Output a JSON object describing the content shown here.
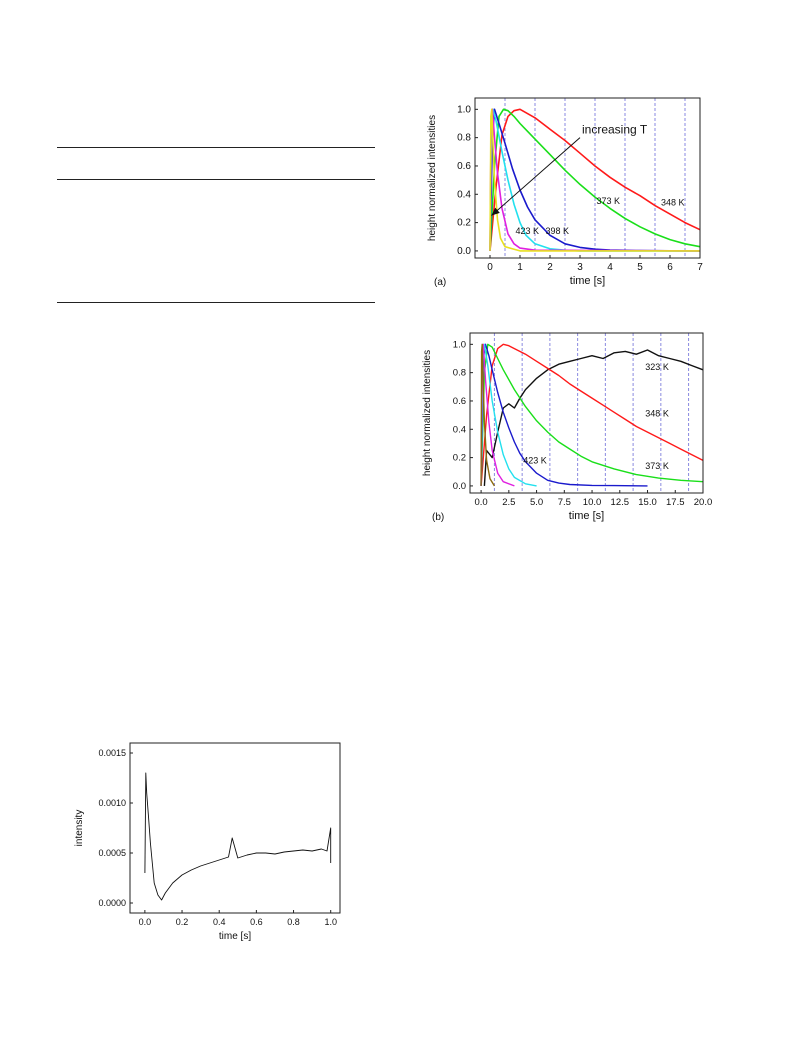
{
  "chart_data": [
    {
      "type": "line",
      "panel_label": "(a)",
      "xlabel": "time [s]",
      "ylabel": "height normalized intensities",
      "xlim": [
        -0.5,
        7
      ],
      "ylim": [
        -0.05,
        1.08
      ],
      "xticks": [
        "0",
        "1",
        "2",
        "3",
        "4",
        "5",
        "6",
        "7"
      ],
      "xtick_values": [
        0,
        1,
        2,
        3,
        4,
        5,
        6,
        7
      ],
      "yticks": [
        "0.0",
        "0.2",
        "0.4",
        "0.6",
        "0.8",
        "1.0"
      ],
      "ytick_values": [
        0,
        0.2,
        0.4,
        0.6,
        0.8,
        1.0
      ],
      "vlines": [
        0.5,
        1.5,
        2.5,
        3.5,
        4.5,
        5.5,
        6.5
      ],
      "vline_color": "#8a8ae0",
      "annotation": {
        "text": "increasing T",
        "arrow_from": [
          3.0,
          0.8
        ],
        "arrow_to": [
          0.05,
          0.25
        ]
      },
      "series": [
        {
          "name": "348 K",
          "color": "#ff1a1a",
          "x": [
            0,
            0.2,
            0.4,
            0.6,
            0.8,
            1.0,
            1.5,
            2.0,
            2.5,
            3.0,
            3.5,
            4.0,
            4.5,
            5.0,
            5.5,
            6.0,
            6.5,
            7.0
          ],
          "y": [
            0,
            0.45,
            0.82,
            0.95,
            0.99,
            1.0,
            0.94,
            0.86,
            0.78,
            0.69,
            0.6,
            0.52,
            0.45,
            0.39,
            0.32,
            0.26,
            0.2,
            0.15
          ]
        },
        {
          "name": "373 K",
          "color": "#1adf1a",
          "x": [
            0,
            0.15,
            0.3,
            0.45,
            0.6,
            0.8,
            1.0,
            1.5,
            2.0,
            2.5,
            3.0,
            3.5,
            4.0,
            4.5,
            5.0,
            5.5,
            6.0,
            6.5,
            7.0
          ],
          "y": [
            0,
            0.6,
            0.95,
            1.0,
            0.99,
            0.95,
            0.9,
            0.79,
            0.68,
            0.57,
            0.47,
            0.38,
            0.3,
            0.23,
            0.17,
            0.12,
            0.08,
            0.05,
            0.03
          ]
        },
        {
          "name": "398 K",
          "color": "#1a1acc",
          "x": [
            0,
            0.08,
            0.15,
            0.3,
            0.5,
            0.75,
            1.0,
            1.25,
            1.5,
            2.0,
            2.5,
            3.0,
            3.5,
            4.0,
            5.0,
            6.0,
            7.0
          ],
          "y": [
            0,
            0.8,
            1.0,
            0.9,
            0.76,
            0.58,
            0.43,
            0.31,
            0.22,
            0.11,
            0.05,
            0.025,
            0.012,
            0.006,
            0.002,
            0.001,
            0.0
          ]
        },
        {
          "name": "423 K",
          "color": "#22e0ee",
          "x": [
            0,
            0.05,
            0.1,
            0.2,
            0.4,
            0.6,
            0.8,
            1.0,
            1.2,
            1.5,
            2.0,
            2.5,
            3.0,
            7.0
          ],
          "y": [
            0,
            0.9,
            1.0,
            0.92,
            0.7,
            0.5,
            0.33,
            0.2,
            0.11,
            0.05,
            0.015,
            0.005,
            0.0,
            0.0
          ]
        },
        {
          "name": "",
          "color": "#e020e0",
          "x": [
            0,
            0.04,
            0.08,
            0.15,
            0.25,
            0.4,
            0.6,
            0.8,
            1.0,
            1.5,
            7.0
          ],
          "y": [
            0,
            0.95,
            1.0,
            0.8,
            0.55,
            0.3,
            0.12,
            0.05,
            0.02,
            0.005,
            0.0
          ]
        },
        {
          "name": "",
          "color": "#e8e020",
          "x": [
            0,
            0.03,
            0.06,
            0.1,
            0.15,
            0.25,
            0.35,
            0.5,
            1.0,
            7.0
          ],
          "y": [
            0,
            0.95,
            1.0,
            0.75,
            0.5,
            0.22,
            0.09,
            0.03,
            0.0,
            0.0
          ]
        }
      ],
      "labels": [
        {
          "text": "348 K",
          "x": 5.7,
          "y": 0.32
        },
        {
          "text": "373 K",
          "x": 3.55,
          "y": 0.33
        },
        {
          "text": "423 K",
          "x": 0.85,
          "y": 0.12
        },
        {
          "text": "398 K",
          "x": 1.85,
          "y": 0.12
        }
      ]
    },
    {
      "type": "line",
      "panel_label": "(b)",
      "xlabel": "time [s]",
      "ylabel": "height normalized intensities",
      "xlim": [
        -1,
        20
      ],
      "ylim": [
        -0.05,
        1.08
      ],
      "xticks": [
        "0.0",
        "2.5",
        "5.0",
        "7.5",
        "10.0",
        "12.5",
        "15.0",
        "17.5",
        "20.0"
      ],
      "xtick_values": [
        0,
        2.5,
        5,
        7.5,
        10,
        12.5,
        15,
        17.5,
        20
      ],
      "yticks": [
        "0.0",
        "0.2",
        "0.4",
        "0.6",
        "0.8",
        "1.0"
      ],
      "ytick_values": [
        0,
        0.2,
        0.4,
        0.6,
        0.8,
        1.0
      ],
      "vlines": [
        1.2,
        3.7,
        6.2,
        8.7,
        11.2,
        13.7,
        16.2,
        18.7
      ],
      "vline_color": "#8a8ae0",
      "series": [
        {
          "name": "323 K",
          "color": "#111111",
          "x": [
            0.3,
            0.5,
            1.0,
            1.5,
            2.0,
            2.5,
            3.0,
            3.5,
            4.0,
            5.0,
            6.0,
            7.0,
            8.0,
            9.0,
            10.0,
            11.0,
            12.0,
            13.0,
            14.0,
            15.0,
            16.0,
            17.0,
            18.0,
            19.0,
            20.0
          ],
          "y": [
            0,
            0.25,
            0.2,
            0.38,
            0.55,
            0.58,
            0.55,
            0.62,
            0.68,
            0.76,
            0.82,
            0.86,
            0.88,
            0.9,
            0.92,
            0.9,
            0.94,
            0.95,
            0.93,
            0.96,
            0.92,
            0.9,
            0.88,
            0.85,
            0.82
          ]
        },
        {
          "name": "348 K",
          "color": "#ff1a1a",
          "x": [
            0,
            0.5,
            1.0,
            1.5,
            2.0,
            2.5,
            3.0,
            4.0,
            5.0,
            6.0,
            7.0,
            8.0,
            9.0,
            10.0,
            11.0,
            12.0,
            13.0,
            14.0,
            15.0,
            16.0,
            17.0,
            18.0,
            19.0,
            20.0
          ],
          "y": [
            0,
            0.5,
            0.85,
            0.97,
            1.0,
            0.99,
            0.97,
            0.93,
            0.88,
            0.83,
            0.78,
            0.72,
            0.67,
            0.62,
            0.57,
            0.52,
            0.47,
            0.42,
            0.38,
            0.34,
            0.3,
            0.26,
            0.22,
            0.18
          ]
        },
        {
          "name": "373 K",
          "color": "#1adf1a",
          "x": [
            0,
            0.3,
            0.6,
            1.0,
            1.5,
            2.0,
            3.0,
            4.0,
            5.0,
            6.0,
            7.0,
            8.0,
            9.0,
            10.0,
            12.0,
            14.0,
            16.0,
            18.0,
            20.0
          ],
          "y": [
            0,
            0.8,
            1.0,
            0.98,
            0.9,
            0.82,
            0.68,
            0.56,
            0.46,
            0.38,
            0.31,
            0.26,
            0.21,
            0.17,
            0.12,
            0.08,
            0.055,
            0.04,
            0.03
          ]
        },
        {
          "name": "423 K",
          "color": "#1a1acc",
          "x": [
            0,
            0.2,
            0.4,
            0.7,
            1.0,
            1.5,
            2.0,
            2.5,
            3.0,
            3.5,
            4.0,
            5.0,
            6.0,
            7.0,
            8.0,
            10.0,
            12.0,
            15.0
          ],
          "y": [
            0,
            0.9,
            1.0,
            0.92,
            0.82,
            0.66,
            0.52,
            0.41,
            0.31,
            0.23,
            0.17,
            0.09,
            0.04,
            0.02,
            0.01,
            0.004,
            0.002,
            0.0
          ]
        },
        {
          "name": "",
          "color": "#22e0ee",
          "x": [
            0,
            0.15,
            0.3,
            0.6,
            1.0,
            1.5,
            2.0,
            2.5,
            3.0,
            4.0,
            5.0
          ],
          "y": [
            0,
            0.9,
            1.0,
            0.85,
            0.6,
            0.38,
            0.22,
            0.12,
            0.06,
            0.015,
            0.0
          ]
        },
        {
          "name": "",
          "color": "#e020e0",
          "x": [
            0,
            0.1,
            0.2,
            0.4,
            0.7,
            1.0,
            1.5,
            2.0,
            3.0
          ],
          "y": [
            0,
            0.95,
            1.0,
            0.75,
            0.45,
            0.25,
            0.09,
            0.03,
            0.0
          ]
        },
        {
          "name": "",
          "color": "#8b6a10",
          "x": [
            0,
            0.05,
            0.1,
            0.2,
            0.3,
            0.5,
            0.8,
            1.2
          ],
          "y": [
            0,
            0.95,
            1.0,
            0.7,
            0.45,
            0.18,
            0.05,
            0.0
          ]
        }
      ],
      "labels": [
        {
          "text": "323 K",
          "x": 14.8,
          "y": 0.82
        },
        {
          "text": "348 K",
          "x": 14.8,
          "y": 0.49
        },
        {
          "text": "423 K",
          "x": 3.8,
          "y": 0.16
        },
        {
          "text": "373 K",
          "x": 14.8,
          "y": 0.12
        }
      ]
    },
    {
      "type": "line",
      "xlabel": "time [s]",
      "ylabel": "intensity",
      "xlim": [
        -0.08,
        1.05
      ],
      "ylim": [
        -0.0001,
        0.0016
      ],
      "xticks": [
        "0.0",
        "0.2",
        "0.4",
        "0.6",
        "0.8",
        "1.0"
      ],
      "xtick_values": [
        0,
        0.2,
        0.4,
        0.6,
        0.8,
        1.0
      ],
      "yticks": [
        "0.0000",
        "0.0005",
        "0.0010",
        "0.0015"
      ],
      "ytick_values": [
        0,
        0.0005,
        0.001,
        0.0015
      ],
      "series": [
        {
          "name": "",
          "color": "#111111",
          "x": [
            0.0,
            0.005,
            0.01,
            0.02,
            0.03,
            0.04,
            0.05,
            0.07,
            0.09,
            0.11,
            0.13,
            0.15,
            0.2,
            0.25,
            0.3,
            0.35,
            0.4,
            0.45,
            0.47,
            0.5,
            0.55,
            0.6,
            0.65,
            0.7,
            0.75,
            0.8,
            0.85,
            0.9,
            0.95,
            0.98,
            1.0,
            1.0
          ],
          "y": [
            0.0003,
            0.0013,
            0.0011,
            0.00085,
            0.0006,
            0.0004,
            0.0002,
            8e-05,
            3e-05,
            0.0001,
            0.00015,
            0.0002,
            0.00028,
            0.00033,
            0.00037,
            0.0004,
            0.00043,
            0.00046,
            0.00065,
            0.00045,
            0.00048,
            0.0005,
            0.0005,
            0.00049,
            0.00051,
            0.00052,
            0.00053,
            0.00052,
            0.00054,
            0.00052,
            0.00075,
            0.0004
          ]
        }
      ]
    }
  ]
}
